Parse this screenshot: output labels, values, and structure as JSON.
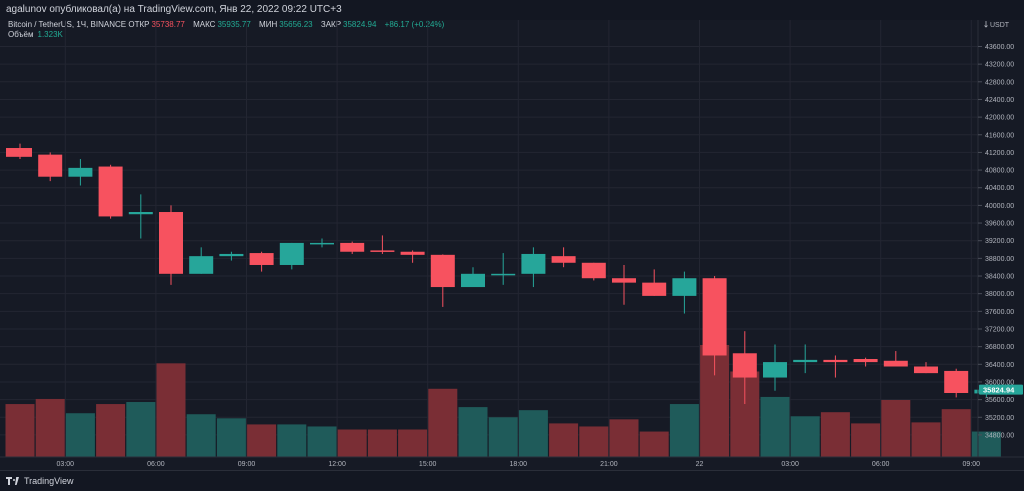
{
  "header": {
    "text": "agalunov опубликовал(а) на TradingView.com, Янв 22, 2022 09:22 UTC+3"
  },
  "legend": {
    "symbol": "Bitcoin / TetherUS, 1Ч, BINANCE",
    "open_label": "ОТКР",
    "open_value": "35738.77",
    "high_label": "МАКС",
    "high_value": "35935.77",
    "low_label": "МИН",
    "low_value": "35656.23",
    "close_label": "ЗАКР",
    "close_value": "35824.94",
    "change": "+86.17 (+0.24%)",
    "volume_label": "Объём",
    "volume_value": "1.323K"
  },
  "axis": {
    "currency": "USDT",
    "last_price": "35824.94"
  },
  "footer": {
    "brand": "TradingView"
  },
  "colors": {
    "up": "#26a69a",
    "down": "#f7525f",
    "up_vol": "#1f5b5a",
    "down_vol": "#7a2e35",
    "background": "#161a25",
    "grid": "#232632",
    "axis_text": "#b2b5be"
  },
  "chart_data": {
    "type": "candlestick",
    "y_unit": "USDT",
    "y_ticks": [
      34800,
      35200,
      35600,
      36000,
      36400,
      36800,
      37200,
      37600,
      38000,
      38400,
      38800,
      39200,
      39600,
      40000,
      40400,
      40800,
      41200,
      41600,
      42000,
      42400,
      42800,
      43200,
      43600
    ],
    "ylim": [
      34300,
      44200
    ],
    "x_ticks": [
      {
        "label": "03:00",
        "index": 1.5
      },
      {
        "label": "06:00",
        "index": 4.5
      },
      {
        "label": "09:00",
        "index": 7.5
      },
      {
        "label": "12:00",
        "index": 10.5
      },
      {
        "label": "15:00",
        "index": 13.5
      },
      {
        "label": "18:00",
        "index": 16.5
      },
      {
        "label": "21:00",
        "index": 19.5
      },
      {
        "label": "22",
        "index": 22.5
      },
      {
        "label": "03:00",
        "index": 25.5
      },
      {
        "label": "06:00",
        "index": 28.5
      },
      {
        "label": "09:00",
        "index": 31.5
      }
    ],
    "candles": [
      {
        "o": 41300,
        "h": 41400,
        "c": 41100,
        "l": 41050
      },
      {
        "o": 41150,
        "h": 41200,
        "c": 40650,
        "l": 40550
      },
      {
        "o": 40650,
        "h": 41050,
        "c": 40850,
        "l": 40450
      },
      {
        "o": 40880,
        "h": 40920,
        "c": 39750,
        "l": 39700
      },
      {
        "o": 39800,
        "h": 40250,
        "c": 39850,
        "l": 39250
      },
      {
        "o": 39850,
        "h": 40000,
        "c": 38450,
        "l": 38200
      },
      {
        "o": 38450,
        "h": 39050,
        "c": 38850,
        "l": 38450
      },
      {
        "o": 38850,
        "h": 38950,
        "c": 38900,
        "l": 38750
      },
      {
        "o": 38920,
        "h": 38950,
        "c": 38650,
        "l": 38500
      },
      {
        "o": 38650,
        "h": 39150,
        "c": 39150,
        "l": 38550
      },
      {
        "o": 39120,
        "h": 39250,
        "c": 39150,
        "l": 39050
      },
      {
        "o": 39150,
        "h": 39180,
        "c": 38950,
        "l": 38900
      },
      {
        "o": 38980,
        "h": 39320,
        "c": 38970,
        "l": 38900
      },
      {
        "o": 38950,
        "h": 38980,
        "c": 38880,
        "l": 38700
      },
      {
        "o": 38880,
        "h": 38890,
        "c": 38150,
        "l": 37700
      },
      {
        "o": 38150,
        "h": 38600,
        "c": 38450,
        "l": 38150
      },
      {
        "o": 38450,
        "h": 38920,
        "c": 38450,
        "l": 38200
      },
      {
        "o": 38450,
        "h": 39050,
        "c": 38900,
        "l": 38150
      },
      {
        "o": 38850,
        "h": 39050,
        "c": 38700,
        "l": 38600
      },
      {
        "o": 38700,
        "h": 38700,
        "c": 38350,
        "l": 38300
      },
      {
        "o": 38350,
        "h": 38650,
        "c": 38250,
        "l": 37750
      },
      {
        "o": 38250,
        "h": 38550,
        "c": 37950,
        "l": 37950
      },
      {
        "o": 37950,
        "h": 38500,
        "c": 38350,
        "l": 37550
      },
      {
        "o": 38350,
        "h": 38400,
        "c": 36600,
        "l": 36150
      },
      {
        "o": 36650,
        "h": 37150,
        "c": 36100,
        "l": 35500
      },
      {
        "o": 36100,
        "h": 36850,
        "c": 36450,
        "l": 35800
      },
      {
        "o": 36450,
        "h": 36850,
        "c": 36500,
        "l": 36200
      },
      {
        "o": 36500,
        "h": 36600,
        "c": 36450,
        "l": 36100
      },
      {
        "o": 36520,
        "h": 36550,
        "c": 36450,
        "l": 36350
      },
      {
        "o": 36480,
        "h": 36700,
        "c": 36350,
        "l": 36350
      },
      {
        "o": 36350,
        "h": 36450,
        "c": 36200,
        "l": 36200
      },
      {
        "o": 36250,
        "h": 36300,
        "c": 35750,
        "l": 35650
      },
      {
        "o": 35740,
        "h": 35940,
        "c": 35825,
        "l": 35660
      }
    ],
    "volume": [
      0.52,
      0.57,
      0.43,
      0.52,
      0.54,
      0.92,
      0.42,
      0.38,
      0.32,
      0.32,
      0.3,
      0.27,
      0.27,
      0.27,
      0.67,
      0.49,
      0.39,
      0.46,
      0.33,
      0.3,
      0.37,
      0.25,
      0.52,
      1.1,
      0.84,
      0.59,
      0.4,
      0.44,
      0.33,
      0.56,
      0.34,
      0.47,
      0.25
    ]
  }
}
